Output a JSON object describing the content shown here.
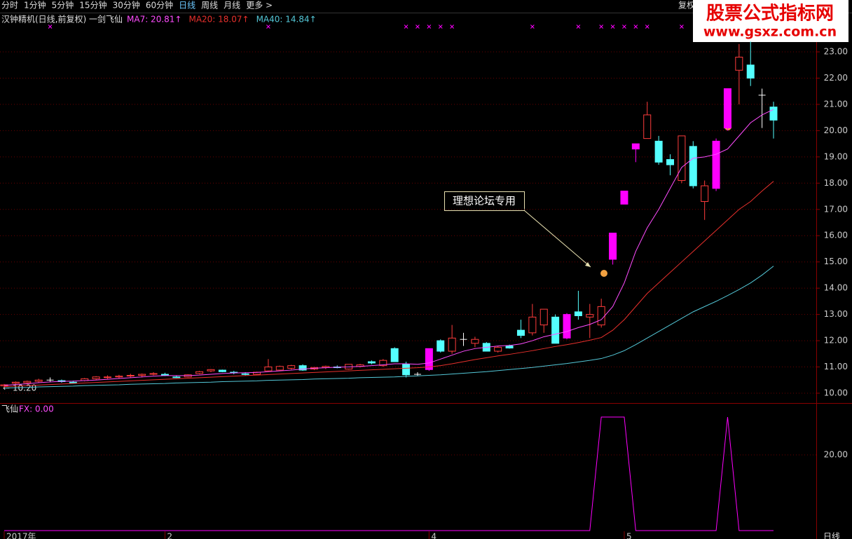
{
  "menu": {
    "items": [
      "分时",
      "1分钟",
      "5分钟",
      "15分钟",
      "30分钟",
      "60分钟",
      "日线",
      "周线",
      "月线",
      "更多 >"
    ],
    "active": 6,
    "right": "复权"
  },
  "watermark": {
    "title": "股票公式指标网",
    "url": "www.gsxz.com.cn"
  },
  "chart_data": {
    "type": "candlestick",
    "title": "汉钟精机(日线,前复权) 一剑飞仙",
    "categories": [
      "2017年",
      null,
      null,
      null,
      null,
      null,
      null,
      null,
      null,
      null,
      null,
      null,
      null,
      null,
      "2",
      null,
      null,
      null,
      null,
      null,
      null,
      null,
      null,
      null,
      null,
      null,
      null,
      null,
      null,
      null,
      null,
      null,
      null,
      null,
      null,
      null,
      null,
      "4",
      null,
      null,
      null,
      null,
      null,
      null,
      null,
      null,
      null,
      null,
      null,
      null,
      null,
      null,
      null,
      null,
      "5",
      null,
      null,
      null,
      null,
      null,
      null,
      null,
      null,
      null,
      null,
      null,
      null,
      null
    ],
    "open": [
      10.28,
      10.38,
      10.4,
      10.45,
      10.5,
      10.48,
      10.42,
      10.48,
      10.55,
      10.6,
      10.62,
      10.66,
      10.68,
      10.72,
      10.72,
      10.62,
      10.62,
      10.75,
      10.85,
      10.88,
      10.8,
      10.74,
      10.72,
      10.85,
      10.88,
      10.95,
      11.05,
      10.92,
      10.98,
      11.0,
      10.92,
      11.02,
      11.2,
      11.05,
      11.7,
      11.1,
      10.72,
      10.9,
      12.0,
      11.6,
      12.05,
      11.9,
      11.9,
      11.6,
      11.8,
      12.4,
      12.3,
      12.6,
      12.9,
      12.1,
      13.1,
      12.9,
      12.6,
      15.1,
      17.2,
      19.3,
      19.7,
      19.6,
      18.9,
      18.1,
      19.4,
      17.3,
      17.8,
      20.1,
      22.3,
      22.5,
      21.35,
      20.9
    ],
    "high": [
      10.35,
      10.45,
      10.48,
      10.55,
      10.6,
      10.52,
      10.48,
      10.58,
      10.65,
      10.68,
      10.7,
      10.74,
      10.75,
      10.8,
      10.78,
      10.68,
      10.72,
      10.85,
      10.92,
      10.9,
      10.85,
      10.8,
      10.82,
      11.3,
      11.05,
      11.08,
      11.1,
      11.0,
      11.05,
      11.06,
      11.1,
      11.12,
      11.25,
      11.3,
      11.75,
      11.2,
      10.8,
      11.7,
      12.05,
      12.6,
      12.3,
      12.15,
      11.95,
      11.8,
      11.85,
      12.8,
      13.4,
      13.2,
      13.0,
      13.05,
      13.9,
      13.4,
      13.6,
      16.1,
      17.7,
      19.5,
      21.1,
      19.8,
      19.1,
      19.8,
      19.6,
      18.1,
      19.7,
      21.6,
      23.3,
      23.4,
      21.6,
      21.1
    ],
    "low": [
      10.2,
      10.32,
      10.35,
      10.4,
      10.42,
      10.4,
      10.36,
      10.45,
      10.5,
      10.55,
      10.56,
      10.6,
      10.6,
      10.68,
      10.65,
      10.58,
      10.6,
      10.72,
      10.8,
      10.8,
      10.72,
      10.68,
      10.7,
      10.82,
      10.85,
      10.9,
      10.85,
      10.88,
      10.92,
      10.95,
      10.9,
      10.98,
      11.1,
      11.0,
      11.2,
      10.6,
      10.65,
      10.85,
      11.55,
      11.5,
      11.8,
      11.75,
      11.6,
      11.55,
      11.7,
      12.1,
      12.2,
      12.3,
      11.9,
      12.05,
      12.8,
      12.1,
      12.5,
      14.9,
      17.2,
      18.8,
      19.7,
      18.7,
      18.3,
      18.0,
      17.8,
      16.6,
      17.7,
      20.0,
      21.0,
      21.7,
      20.1,
      19.7
    ],
    "close": [
      10.32,
      10.42,
      10.45,
      10.5,
      10.5,
      10.44,
      10.4,
      10.55,
      10.62,
      10.62,
      10.65,
      10.68,
      10.72,
      10.75,
      10.68,
      10.6,
      10.7,
      10.82,
      10.9,
      10.82,
      10.78,
      10.72,
      10.8,
      11.0,
      11.02,
      11.05,
      10.88,
      10.98,
      11.02,
      10.98,
      11.1,
      11.08,
      11.15,
      11.25,
      11.2,
      10.7,
      10.72,
      11.7,
      11.6,
      12.1,
      12.05,
      12.05,
      11.6,
      11.75,
      11.72,
      12.2,
      12.9,
      13.2,
      11.9,
      13.0,
      12.95,
      13.0,
      13.3,
      16.1,
      17.7,
      19.5,
      20.6,
      18.8,
      18.7,
      19.8,
      17.9,
      17.9,
      19.6,
      21.6,
      22.8,
      22.0,
      21.35,
      20.4
    ],
    "highlight": [
      37,
      49,
      53,
      54,
      55,
      62,
      63
    ],
    "colors": {
      "up": "#ff3c3c",
      "down": "#54ffff",
      "highlight": "#ff00ff",
      "flat": "#ffffff"
    },
    "series": [
      {
        "label": "MA7: 20.81↑",
        "color": "#ff4cff",
        "values": [
          10.3,
          10.33,
          10.36,
          10.4,
          10.43,
          10.45,
          10.46,
          10.48,
          10.5,
          10.53,
          10.56,
          10.59,
          10.62,
          10.65,
          10.67,
          10.67,
          10.67,
          10.69,
          10.72,
          10.75,
          10.77,
          10.78,
          10.79,
          10.82,
          10.85,
          10.88,
          10.92,
          10.95,
          10.97,
          10.99,
          11.0,
          11.02,
          11.05,
          11.08,
          11.12,
          11.12,
          11.1,
          11.15,
          11.3,
          11.45,
          11.6,
          11.7,
          11.75,
          11.8,
          11.82,
          11.88,
          12.0,
          12.15,
          12.25,
          12.35,
          12.5,
          12.62,
          12.8,
          13.3,
          14.2,
          15.4,
          16.3,
          17.0,
          17.8,
          18.6,
          18.95,
          19.0,
          19.1,
          19.3,
          19.8,
          20.3,
          20.6,
          20.81
        ]
      },
      {
        "label": "MA20: 18.07↑",
        "color": "#e8302c",
        "values": [
          10.25,
          10.27,
          10.29,
          10.31,
          10.33,
          10.35,
          10.37,
          10.39,
          10.41,
          10.43,
          10.45,
          10.47,
          10.49,
          10.51,
          10.53,
          10.55,
          10.57,
          10.59,
          10.61,
          10.63,
          10.65,
          10.67,
          10.69,
          10.71,
          10.73,
          10.75,
          10.77,
          10.79,
          10.81,
          10.83,
          10.85,
          10.87,
          10.89,
          10.91,
          10.93,
          10.95,
          10.97,
          11.0,
          11.05,
          11.12,
          11.2,
          11.28,
          11.35,
          11.42,
          11.48,
          11.55,
          11.62,
          11.7,
          11.78,
          11.85,
          11.93,
          12.02,
          12.12,
          12.4,
          12.8,
          13.3,
          13.8,
          14.2,
          14.6,
          15.0,
          15.4,
          15.8,
          16.2,
          16.6,
          17.0,
          17.3,
          17.7,
          18.07
        ]
      },
      {
        "label": "MA40: 14.84↑",
        "color": "#54c8d8",
        "values": [
          10.2,
          10.21,
          10.22,
          10.24,
          10.25,
          10.26,
          10.27,
          10.29,
          10.3,
          10.31,
          10.32,
          10.34,
          10.35,
          10.36,
          10.37,
          10.39,
          10.4,
          10.41,
          10.42,
          10.44,
          10.45,
          10.46,
          10.47,
          10.49,
          10.5,
          10.51,
          10.52,
          10.54,
          10.55,
          10.56,
          10.57,
          10.59,
          10.6,
          10.61,
          10.62,
          10.64,
          10.66,
          10.68,
          10.7,
          10.73,
          10.76,
          10.79,
          10.82,
          10.86,
          10.9,
          10.94,
          10.98,
          11.03,
          11.08,
          11.13,
          11.19,
          11.25,
          11.32,
          11.45,
          11.62,
          11.85,
          12.1,
          12.35,
          12.6,
          12.85,
          13.1,
          13.3,
          13.5,
          13.72,
          13.95,
          14.2,
          14.5,
          14.84
        ]
      }
    ],
    "signal_marks": [
      4,
      23,
      35,
      36,
      37,
      38,
      39,
      46,
      50,
      52,
      53,
      54,
      55,
      56,
      59
    ],
    "signal_color": "#ff00ff",
    "ylim": [
      10,
      23
    ],
    "yticks": [
      {
        "value": 10,
        "label": "10.00"
      },
      {
        "value": 11,
        "label": "11.00"
      },
      {
        "value": 12,
        "label": "12.00"
      },
      {
        "value": 13,
        "label": "13.00"
      },
      {
        "value": 14,
        "label": "14.00"
      },
      {
        "value": 15,
        "label": "15.00"
      },
      {
        "value": 16,
        "label": "16.00"
      },
      {
        "value": 17,
        "label": "17.00"
      },
      {
        "value": 18,
        "label": "18.00"
      },
      {
        "value": 19,
        "label": "19.00"
      },
      {
        "value": 20,
        "label": "20.00"
      },
      {
        "value": 21,
        "label": "21.00"
      },
      {
        "value": 22,
        "label": "22.00"
      },
      {
        "value": 23,
        "label": "23.00"
      }
    ],
    "grid": true,
    "low_label": "← 10.20",
    "annotation": "理想论坛专用",
    "period_label": "日线",
    "indicator": {
      "name": "飞仙",
      "value_label": "FX: 0.00",
      "color": "#ff00ff",
      "values": [
        0,
        0,
        0,
        0,
        0,
        0,
        0,
        0,
        0,
        0,
        0,
        0,
        0,
        0,
        0,
        0,
        0,
        0,
        0,
        0,
        0,
        0,
        0,
        0,
        0,
        0,
        0,
        0,
        0,
        0,
        0,
        0,
        0,
        0,
        0,
        0,
        0,
        0,
        0,
        0,
        0,
        0,
        0,
        0,
        0,
        0,
        0,
        0,
        0,
        0,
        0,
        0,
        30,
        30,
        30,
        0,
        0,
        0,
        0,
        0,
        0,
        0,
        0,
        30,
        0,
        0,
        0,
        0
      ],
      "ylim": [
        0,
        30
      ],
      "yticks": [
        {
          "value": 20,
          "label": "20.00"
        }
      ]
    }
  }
}
